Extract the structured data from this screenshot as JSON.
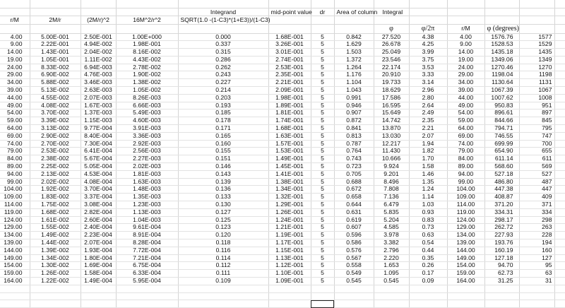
{
  "headers": {
    "integrand_title": "Integrand",
    "midpoint": "mid-point value",
    "dr": "dr",
    "area": "Area of column",
    "integral": "Integral",
    "r_over_m": "r/M",
    "two_m_over_r": "2M/r",
    "two_m_over_r_sq": "(2M/r)^2",
    "sixteen_m2_over_r2": "16M^2/r^2",
    "integrand_formula": "SQRT(1.0 -(1-C3)*(1+E3))/(1-C3)",
    "phi": "φ",
    "phi_over_2pi": "φ/2π",
    "r_over_m_2": "r/M",
    "phi_degrees": "φ (degrees)"
  },
  "rows": [
    [
      "4.00",
      "5.00E-001",
      "2.50E-001",
      "1.00E+000",
      "0.000",
      "1.68E-001",
      "5",
      "0.842",
      "27.520",
      "4.38",
      "4.00",
      "1576.76",
      "1577"
    ],
    [
      "9.00",
      "2.22E-001",
      "4.94E-002",
      "1.98E-001",
      "0.337",
      "3.26E-001",
      "5",
      "1.629",
      "26.678",
      "4.25",
      "9.00",
      "1528.53",
      "1529"
    ],
    [
      "14.00",
      "1.43E-001",
      "2.04E-002",
      "8.16E-002",
      "0.315",
      "3.01E-001",
      "5",
      "1.503",
      "25.049",
      "3.99",
      "14.00",
      "1435.18",
      "1435"
    ],
    [
      "19.00",
      "1.05E-001",
      "1.11E-002",
      "4.43E-002",
      "0.286",
      "2.74E-001",
      "5",
      "1.372",
      "23.546",
      "3.75",
      "19.00",
      "1349.06",
      "1349"
    ],
    [
      "24.00",
      "8.33E-002",
      "6.94E-003",
      "2.78E-002",
      "0.262",
      "2.53E-001",
      "5",
      "1.264",
      "22.174",
      "3.53",
      "24.00",
      "1270.46",
      "1270"
    ],
    [
      "29.00",
      "6.90E-002",
      "4.76E-003",
      "1.90E-002",
      "0.243",
      "2.35E-001",
      "5",
      "1.176",
      "20.910",
      "3.33",
      "29.00",
      "1198.04",
      "1198"
    ],
    [
      "34.00",
      "5.88E-002",
      "3.46E-003",
      "1.38E-002",
      "0.227",
      "2.21E-001",
      "5",
      "1.104",
      "19.733",
      "3.14",
      "34.00",
      "1130.64",
      "1131"
    ],
    [
      "39.00",
      "5.13E-002",
      "2.63E-003",
      "1.05E-002",
      "0.214",
      "2.09E-001",
      "5",
      "1.043",
      "18.629",
      "2.96",
      "39.00",
      "1067.39",
      "1067"
    ],
    [
      "44.00",
      "4.55E-002",
      "2.07E-003",
      "8.26E-003",
      "0.203",
      "1.98E-001",
      "5",
      "0.991",
      "17.586",
      "2.80",
      "44.00",
      "1007.62",
      "1008"
    ],
    [
      "49.00",
      "4.08E-002",
      "1.67E-003",
      "6.66E-003",
      "0.193",
      "1.89E-001",
      "5",
      "0.946",
      "16.595",
      "2.64",
      "49.00",
      "950.83",
      "951"
    ],
    [
      "54.00",
      "3.70E-002",
      "1.37E-003",
      "5.49E-003",
      "0.185",
      "1.81E-001",
      "5",
      "0.907",
      "15.649",
      "2.49",
      "54.00",
      "896.61",
      "897"
    ],
    [
      "59.00",
      "3.39E-002",
      "1.15E-003",
      "4.60E-003",
      "0.178",
      "1.74E-001",
      "5",
      "0.872",
      "14.742",
      "2.35",
      "59.00",
      "844.66",
      "845"
    ],
    [
      "64.00",
      "3.13E-002",
      "9.77E-004",
      "3.91E-003",
      "0.171",
      "1.68E-001",
      "5",
      "0.841",
      "13.870",
      "2.21",
      "64.00",
      "794.71",
      "795"
    ],
    [
      "69.00",
      "2.90E-002",
      "8.40E-004",
      "3.36E-003",
      "0.165",
      "1.63E-001",
      "5",
      "0.813",
      "13.030",
      "2.07",
      "69.00",
      "746.55",
      "747"
    ],
    [
      "74.00",
      "2.70E-002",
      "7.30E-004",
      "2.92E-003",
      "0.160",
      "1.57E-001",
      "5",
      "0.787",
      "12.217",
      "1.94",
      "74.00",
      "699.99",
      "700"
    ],
    [
      "79.00",
      "2.53E-002",
      "6.41E-004",
      "2.56E-003",
      "0.155",
      "1.53E-001",
      "5",
      "0.764",
      "11.430",
      "1.82",
      "79.00",
      "654.90",
      "655"
    ],
    [
      "84.00",
      "2.38E-002",
      "5.67E-004",
      "2.27E-003",
      "0.151",
      "1.49E-001",
      "5",
      "0.743",
      "10.666",
      "1.70",
      "84.00",
      "611.14",
      "611"
    ],
    [
      "89.00",
      "2.25E-002",
      "5.05E-004",
      "2.02E-003",
      "0.146",
      "1.45E-001",
      "5",
      "0.723",
      "9.924",
      "1.58",
      "89.00",
      "568.60",
      "569"
    ],
    [
      "94.00",
      "2.13E-002",
      "4.53E-004",
      "1.81E-003",
      "0.143",
      "1.41E-001",
      "5",
      "0.705",
      "9.201",
      "1.46",
      "94.00",
      "527.18",
      "527"
    ],
    [
      "99.00",
      "2.02E-002",
      "4.08E-004",
      "1.63E-003",
      "0.139",
      "1.38E-001",
      "5",
      "0.688",
      "8.496",
      "1.35",
      "99.00",
      "486.80",
      "487"
    ],
    [
      "104.00",
      "1.92E-002",
      "3.70E-004",
      "1.48E-003",
      "0.136",
      "1.34E-001",
      "5",
      "0.672",
      "7.808",
      "1.24",
      "104.00",
      "447.38",
      "447"
    ],
    [
      "109.00",
      "1.83E-002",
      "3.37E-004",
      "1.35E-003",
      "0.133",
      "1.32E-001",
      "5",
      "0.658",
      "7.136",
      "1.14",
      "109.00",
      "408.87",
      "409"
    ],
    [
      "114.00",
      "1.75E-002",
      "3.08E-004",
      "1.23E-003",
      "0.130",
      "1.29E-001",
      "5",
      "0.644",
      "6.479",
      "1.03",
      "114.00",
      "371.20",
      "371"
    ],
    [
      "119.00",
      "1.68E-002",
      "2.82E-004",
      "1.13E-003",
      "0.127",
      "1.26E-001",
      "5",
      "0.631",
      "5.835",
      "0.93",
      "119.00",
      "334.31",
      "334"
    ],
    [
      "124.00",
      "1.61E-002",
      "2.60E-004",
      "1.04E-003",
      "0.125",
      "1.24E-001",
      "5",
      "0.619",
      "5.204",
      "0.83",
      "124.00",
      "298.17",
      "298"
    ],
    [
      "129.00",
      "1.55E-002",
      "2.40E-004",
      "9.61E-004",
      "0.123",
      "1.21E-001",
      "5",
      "0.607",
      "4.585",
      "0.73",
      "129.00",
      "262.72",
      "263"
    ],
    [
      "134.00",
      "1.49E-002",
      "2.23E-004",
      "8.91E-004",
      "0.120",
      "1.19E-001",
      "5",
      "0.596",
      "3.978",
      "0.63",
      "134.00",
      "227.93",
      "228"
    ],
    [
      "139.00",
      "1.44E-002",
      "2.07E-004",
      "8.28E-004",
      "0.118",
      "1.17E-001",
      "5",
      "0.586",
      "3.382",
      "0.54",
      "139.00",
      "193.76",
      "194"
    ],
    [
      "144.00",
      "1.39E-002",
      "1.93E-004",
      "7.72E-004",
      "0.116",
      "1.15E-001",
      "5",
      "0.576",
      "2.796",
      "0.44",
      "144.00",
      "160.19",
      "160"
    ],
    [
      "149.00",
      "1.34E-002",
      "1.80E-004",
      "7.21E-004",
      "0.114",
      "1.13E-001",
      "5",
      "0.567",
      "2.220",
      "0.35",
      "149.00",
      "127.18",
      "127"
    ],
    [
      "154.00",
      "1.30E-002",
      "1.69E-004",
      "6.75E-004",
      "0.112",
      "1.12E-001",
      "5",
      "0.558",
      "1.653",
      "0.26",
      "154.00",
      "94.70",
      "95"
    ],
    [
      "159.00",
      "1.26E-002",
      "1.58E-004",
      "6.33E-004",
      "0.111",
      "1.10E-001",
      "5",
      "0.549",
      "1.095",
      "0.17",
      "159.00",
      "62.73",
      "63"
    ],
    [
      "164.00",
      "1.22E-002",
      "1.49E-004",
      "5.95E-004",
      "0.109",
      "1.09E-001",
      "5",
      "0.545",
      "0.545",
      "0.09",
      "164.00",
      "31.25",
      "31"
    ]
  ]
}
